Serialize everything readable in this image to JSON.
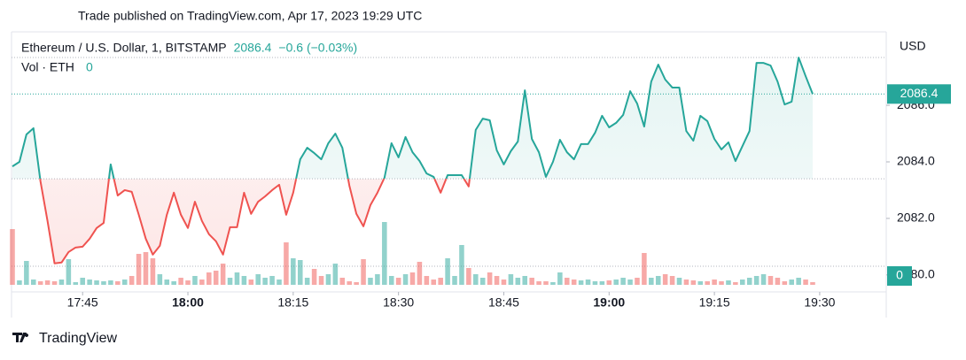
{
  "publish_note": "Trade published on TradingView.com, Apr 17, 2023 19:29 UTC",
  "brand": "TradingView",
  "chart_data": {
    "type": "line",
    "style": "baseline",
    "symbol": "Ethereum / U.S. Dollar, 1, BITSTAMP",
    "last_price": 2086.4,
    "change": "−0.6 (−0.03%)",
    "currency": "USD",
    "baseline": 2083.4,
    "up_color": "#26a69a",
    "down_color": "#ef5350",
    "ylim": [
      2079.4,
      2088.6
    ],
    "yticks": [
      {
        "value": 2080,
        "label": "2080.0"
      },
      {
        "value": 2082,
        "label": "2082.0"
      },
      {
        "value": 2084,
        "label": "2084.0"
      },
      {
        "value": 2086,
        "label": "2086.0"
      }
    ],
    "categories": [
      null,
      null,
      null,
      null,
      null,
      null,
      null,
      null,
      null,
      null,
      "17:45",
      null,
      null,
      null,
      null,
      null,
      null,
      null,
      null,
      null,
      null,
      null,
      null,
      null,
      null,
      "18:00",
      null,
      null,
      null,
      null,
      null,
      null,
      null,
      null,
      null,
      null,
      null,
      null,
      null,
      null,
      "18:15",
      null,
      null,
      null,
      null,
      null,
      null,
      null,
      null,
      null,
      null,
      null,
      null,
      null,
      null,
      "18:30",
      null,
      null,
      null,
      null,
      null,
      null,
      null,
      null,
      null,
      null,
      null,
      null,
      null,
      null,
      "18:45",
      null,
      null,
      null,
      null,
      null,
      null,
      null,
      null,
      null,
      null,
      null,
      null,
      null,
      null,
      "19:00",
      null,
      null,
      null,
      null,
      null,
      null,
      null,
      null,
      null,
      null,
      null,
      null,
      null,
      null,
      "19:15",
      null,
      null,
      null,
      null,
      null,
      null,
      null,
      null,
      null,
      null,
      null,
      null,
      null,
      null,
      "19:30"
    ],
    "values": [
      2083.84,
      2084.0,
      2084.97,
      2085.19,
      2083.31,
      2081.91,
      2080.41,
      2080.44,
      2080.81,
      2080.97,
      2081.0,
      2081.28,
      2081.66,
      2081.84,
      2083.91,
      2082.81,
      2083.0,
      2082.94,
      2082.13,
      2081.28,
      2080.72,
      2081.03,
      2082.13,
      2082.91,
      2082.13,
      2081.66,
      2082.59,
      2081.91,
      2081.44,
      2081.19,
      2080.72,
      2081.69,
      2081.69,
      2082.91,
      2082.16,
      2082.59,
      2082.78,
      2083.0,
      2083.19,
      2082.13,
      2082.91,
      2084.09,
      2084.5,
      2084.31,
      2084.09,
      2084.66,
      2085.0,
      2084.5,
      2083.16,
      2082.16,
      2081.72,
      2082.47,
      2082.91,
      2083.44,
      2084.66,
      2084.16,
      2084.88,
      2084.34,
      2084.03,
      2083.59,
      2083.47,
      2082.91,
      2083.53,
      2083.53,
      2083.53,
      2083.13,
      2085.13,
      2085.53,
      2085.47,
      2084.41,
      2083.91,
      2084.38,
      2084.72,
      2086.53,
      2084.81,
      2084.34,
      2083.47,
      2084.0,
      2084.78,
      2084.34,
      2084.09,
      2084.63,
      2084.63,
      2085.03,
      2085.63,
      2085.22,
      2085.38,
      2085.66,
      2086.5,
      2086.06,
      2085.25,
      2086.84,
      2087.44,
      2086.91,
      2086.63,
      2086.63,
      2085.09,
      2084.75,
      2085.63,
      2085.44,
      2084.81,
      2084.44,
      2084.69,
      2084.03,
      2084.56,
      2085.09,
      2087.5,
      2087.5,
      2087.41,
      2086.84,
      2086.03,
      2086.13,
      2087.69,
      2087.03,
      2086.4,
      null
    ],
    "volume": {
      "label": "Vol · ETH",
      "last": 0,
      "ylim": [
        0,
        100
      ],
      "values": [
        63,
        5,
        27,
        6,
        4,
        5,
        4,
        6,
        29,
        3,
        8,
        6,
        5,
        4,
        5,
        4,
        6,
        10,
        35,
        37,
        30,
        12,
        6,
        4,
        8,
        5,
        10,
        6,
        14,
        16,
        24,
        8,
        14,
        10,
        6,
        12,
        8,
        10,
        6,
        48,
        30,
        28,
        8,
        18,
        10,
        12,
        24,
        8,
        4,
        3,
        29,
        8,
        12,
        71,
        10,
        8,
        12,
        14,
        26,
        10,
        6,
        8,
        30,
        10,
        45,
        19,
        12,
        8,
        14,
        10,
        6,
        12,
        8,
        10,
        8,
        4,
        4,
        3,
        14,
        8,
        6,
        5,
        6,
        4,
        4,
        5,
        6,
        8,
        6,
        8,
        36,
        8,
        10,
        12,
        10,
        8,
        6,
        5,
        4,
        4,
        6,
        4,
        5,
        3,
        6,
        8,
        10,
        12,
        10,
        8,
        4,
        6,
        8,
        6,
        3,
        null
      ]
    }
  }
}
